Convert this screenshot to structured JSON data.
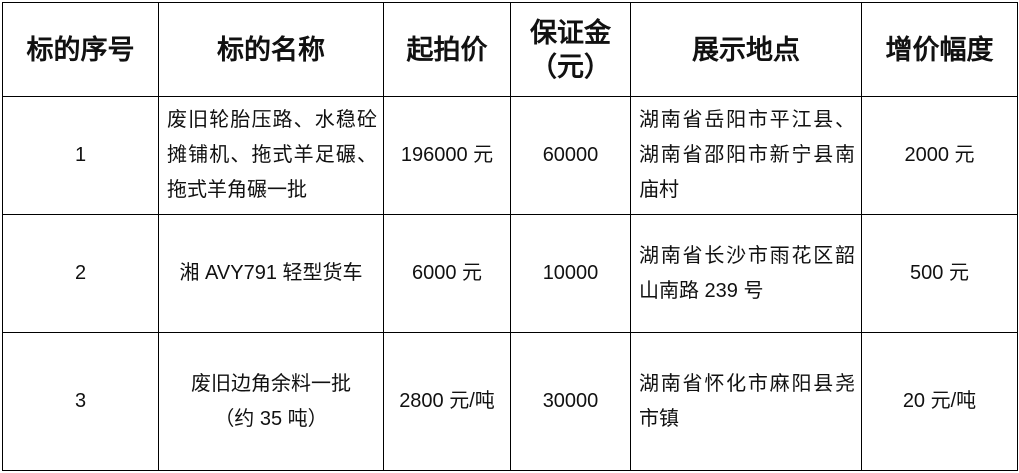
{
  "table": {
    "headers": [
      "标的序号",
      "标的名称",
      "起拍价",
      "保证金（元）",
      "展示地点",
      "增价幅度"
    ],
    "rows": [
      {
        "no": "1",
        "name": "废旧轮胎压路、水稳砼摊铺机、拖式羊足碾、拖式羊角碾一批",
        "start_price": "196000 元",
        "deposit": "60000",
        "location": "湖南省岳阳市平江县、湖南省邵阳市新宁县南庙村",
        "increment": "2000 元"
      },
      {
        "no": "2",
        "name": "湘 AVY791 轻型货车",
        "start_price": "6000 元",
        "deposit": "10000",
        "location": "湖南省长沙市雨花区韶山南路 239 号",
        "increment": "500 元"
      },
      {
        "no": "3",
        "name": "废旧边角余料一批（约 35 吨）",
        "start_price": "2800 元/吨",
        "deposit": "30000",
        "location": "湖南省怀化市麻阳县尧市镇",
        "increment": "20 元/吨"
      }
    ]
  }
}
